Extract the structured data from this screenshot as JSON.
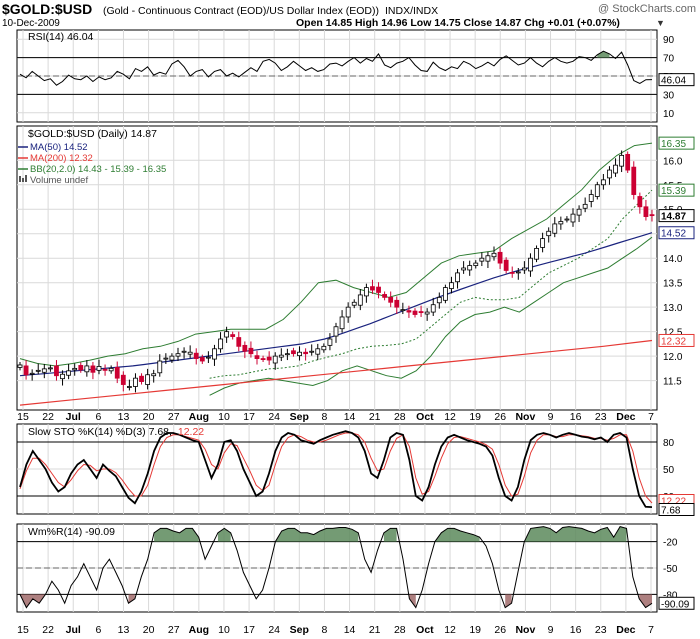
{
  "header": {
    "symbol": "$GOLD:$USD",
    "description": "(Gold - Continuous Contract (EOD)/US Dollar Index (EOD))",
    "exchange": "INDX/INDX",
    "date": "10-Dec-2009",
    "watermark": "@ StockCharts.com",
    "ohlc": "Open 14.85  High 14.96  Low 14.75  Close 14.87  Chg +0.01 (+0.07%)",
    "ohlc_marker": "▼"
  },
  "colors": {
    "up": "#ffffff",
    "down": "#cc0033",
    "ma50": "#1a237e",
    "ma200": "#e53935",
    "bb": "#2e7d32",
    "bb_mid": "#2e7d32",
    "grid": "#d9d9d9",
    "shade": "#5c8a5c",
    "shade_low": "#a06a6a",
    "stoch_d": "#e53935"
  },
  "chart_data": [
    {
      "type": "line",
      "panel": "rsi",
      "label": "RSI(14) 46.04",
      "last_value": "46.04",
      "yticks": [
        "90",
        "70",
        "50",
        "30",
        "10"
      ],
      "ylim": [
        0,
        100
      ],
      "levels": [
        70,
        30
      ],
      "values": [
        52,
        48,
        55,
        50,
        45,
        47,
        40,
        44,
        51,
        47,
        46,
        50,
        44,
        49,
        46,
        48,
        55,
        52,
        47,
        58,
        55,
        60,
        51,
        54,
        52,
        63,
        67,
        60,
        50,
        55,
        57,
        49,
        55,
        57,
        50,
        53,
        49,
        54,
        59,
        55,
        66,
        68,
        64,
        56,
        60,
        66,
        61,
        56,
        59,
        55,
        57,
        63,
        64,
        61,
        66,
        70,
        64,
        69,
        66,
        74,
        62,
        59,
        64,
        66,
        70,
        62,
        56,
        55,
        65,
        59,
        56,
        60,
        58,
        66,
        63,
        58,
        61,
        65,
        61,
        68,
        72,
        67,
        62,
        64,
        70,
        64,
        60,
        66,
        70,
        66,
        64,
        66,
        71,
        70,
        67,
        73,
        77,
        74,
        69,
        76,
        62,
        45,
        42,
        46,
        46.04
      ]
    },
    {
      "type": "candlestick",
      "panel": "price",
      "label": "$GOLD:$USD (Daily) 14.87",
      "ylim": [
        10.9,
        16.7
      ],
      "yticks": [
        "16.0",
        "15.5",
        "15.0",
        "14.5",
        "14.0",
        "13.5",
        "13.0",
        "12.5",
        "12.0",
        "11.5"
      ],
      "legend": [
        {
          "name": "MA(50) 14.52",
          "color": "#1a237e",
          "marker": "line"
        },
        {
          "name": "MA(200) 12.32",
          "color": "#e53935",
          "marker": "line"
        },
        {
          "name": "BB(20,2.0) 14.43 - 15.39 - 16.35",
          "color": "#2e7d32",
          "marker": "line"
        },
        {
          "name": "Volume undef",
          "color": "#555555",
          "marker": "bars"
        }
      ],
      "value_tags": [
        {
          "text": "16.35",
          "value": 16.35,
          "color": "#2e7d32"
        },
        {
          "text": "15.39",
          "value": 15.39,
          "color": "#2e7d32"
        },
        {
          "text": "14.87",
          "value": 14.87,
          "color": "#000000",
          "bold": true
        },
        {
          "text": "14.52",
          "value": 14.52,
          "color": "#1a237e"
        },
        {
          "text": "12.32",
          "value": 12.32,
          "color": "#e53935"
        }
      ],
      "close": [
        11.82,
        11.62,
        11.65,
        11.71,
        11.74,
        11.76,
        11.6,
        11.63,
        11.7,
        11.75,
        11.72,
        11.8,
        11.67,
        11.79,
        11.72,
        11.75,
        11.55,
        11.42,
        11.38,
        11.55,
        11.48,
        11.62,
        11.64,
        11.9,
        11.96,
        12.0,
        12.05,
        12.1,
        12.08,
        11.95,
        11.9,
        11.98,
        12.15,
        12.35,
        12.5,
        12.4,
        12.2,
        12.1,
        12.05,
        11.95,
        11.94,
        11.92,
        12.0,
        12.02,
        12.05,
        12.05,
        12.08,
        12.05,
        12.1,
        12.15,
        12.2,
        12.35,
        12.6,
        12.8,
        13.0,
        13.1,
        13.25,
        13.4,
        13.35,
        13.3,
        13.2,
        13.1,
        13.0,
        12.95,
        12.9,
        12.85,
        12.9,
        12.9,
        13.05,
        13.2,
        13.4,
        13.5,
        13.7,
        13.8,
        13.85,
        13.9,
        14.0,
        14.05,
        14.1,
        13.9,
        13.75,
        13.7,
        13.72,
        13.8,
        14.0,
        14.2,
        14.4,
        14.55,
        14.7,
        14.75,
        14.8,
        14.9,
        15.0,
        15.1,
        15.3,
        15.5,
        15.6,
        15.8,
        15.9,
        16.1,
        15.8,
        15.3,
        15.05,
        14.85,
        14.87
      ],
      "ma50": [
        11.6,
        11.62,
        11.64,
        11.66,
        11.68,
        11.7,
        11.72,
        11.74,
        11.76,
        11.78,
        11.8,
        11.83,
        11.86,
        11.89,
        11.92,
        11.95,
        11.98,
        12.01,
        12.04,
        12.07,
        12.1,
        12.13,
        12.16,
        12.19,
        12.22,
        12.25,
        12.3,
        12.35,
        12.42,
        12.5,
        12.58,
        12.66,
        12.75,
        12.84,
        12.93,
        13.02,
        13.11,
        13.2,
        13.28,
        13.36,
        13.44,
        13.52,
        13.6,
        13.67,
        13.74,
        13.8,
        13.86,
        13.92,
        13.98,
        14.04,
        14.1,
        14.17,
        14.24,
        14.31,
        14.38,
        14.45,
        14.52
      ],
      "ma200": [
        11.0,
        11.1,
        11.2,
        11.3,
        11.4,
        11.5,
        11.6,
        11.7,
        11.8,
        11.9,
        12.0,
        12.1,
        12.2,
        12.32
      ],
      "bb_upper": [
        11.95,
        11.85,
        11.8,
        11.85,
        11.92,
        12.0,
        12.05,
        12.15,
        12.2,
        12.3,
        12.45,
        12.5,
        12.55,
        12.55,
        12.55,
        12.75,
        13.1,
        13.5,
        13.55,
        13.4,
        13.3,
        13.2,
        13.3,
        13.6,
        13.9,
        14.05,
        14.1,
        14.15,
        14.4,
        14.6,
        14.8,
        15.1,
        15.4,
        15.8,
        16.1,
        16.3,
        16.35
      ],
      "bb_lower": [
        11.2,
        11.35,
        11.45,
        11.5,
        11.55,
        11.5,
        11.45,
        11.4,
        11.5,
        11.7,
        11.8,
        11.7,
        11.6,
        11.55,
        11.7,
        12.0,
        12.4,
        12.7,
        12.85,
        12.9,
        13.0,
        12.9,
        13.1,
        13.3,
        13.5,
        13.6,
        13.7,
        13.8,
        14.0,
        14.2,
        14.43
      ],
      "bb_mid": [
        11.55,
        11.6,
        11.62,
        11.68,
        11.74,
        11.76,
        11.8,
        11.9,
        11.98,
        12.05,
        12.15,
        12.2,
        12.22,
        12.25,
        12.35,
        12.6,
        12.85,
        13.1,
        13.2,
        13.15,
        13.15,
        13.2,
        13.45,
        13.7,
        13.85,
        14.0,
        14.2,
        14.4,
        14.8,
        15.1,
        15.39
      ]
    },
    {
      "type": "line",
      "panel": "stochastic",
      "label": "Slow STO %K(14) %D(3) 7.68, 12.22",
      "title_k": "Slow STO %K(14) %D(3) 7.68,",
      "title_d": "12.22",
      "last_k": "7.68",
      "last_d": "12.22",
      "ylim": [
        0,
        100
      ],
      "yticks": [
        "80",
        "50",
        "20"
      ],
      "levels": [
        80,
        20
      ],
      "series": [
        {
          "name": "%K",
          "values": [
            30,
            55,
            70,
            60,
            50,
            35,
            25,
            30,
            45,
            55,
            60,
            50,
            40,
            55,
            48,
            42,
            30,
            18,
            12,
            25,
            45,
            70,
            85,
            90,
            90,
            88,
            85,
            82,
            80,
            60,
            40,
            55,
            80,
            82,
            70,
            50,
            35,
            20,
            25,
            45,
            70,
            85,
            90,
            88,
            82,
            80,
            78,
            82,
            85,
            88,
            90,
            92,
            90,
            85,
            70,
            45,
            40,
            60,
            85,
            90,
            88,
            60,
            20,
            15,
            30,
            55,
            75,
            85,
            88,
            85,
            82,
            80,
            78,
            75,
            65,
            40,
            20,
            15,
            30,
            60,
            82,
            88,
            90,
            88,
            85,
            88,
            90,
            88,
            86,
            85,
            83,
            85,
            80,
            88,
            90,
            85,
            50,
            20,
            8,
            7.68
          ]
        },
        {
          "name": "%D",
          "values": [
            28,
            48,
            62,
            62,
            55,
            45,
            35,
            30,
            38,
            48,
            55,
            54,
            48,
            50,
            50,
            46,
            38,
            28,
            20,
            20,
            32,
            55,
            75,
            85,
            88,
            88,
            86,
            84,
            82,
            72,
            55,
            50,
            68,
            78,
            76,
            62,
            48,
            32,
            26,
            32,
            55,
            75,
            85,
            88,
            86,
            82,
            80,
            80,
            82,
            85,
            88,
            90,
            90,
            88,
            80,
            62,
            48,
            50,
            70,
            84,
            88,
            75,
            40,
            22,
            25,
            42,
            62,
            78,
            85,
            86,
            84,
            82,
            80,
            77,
            72,
            55,
            32,
            20,
            22,
            42,
            68,
            82,
            88,
            88,
            86,
            86,
            88,
            88,
            87,
            86,
            84,
            84,
            82,
            84,
            88,
            88,
            70,
            40,
            20,
            12.22
          ]
        }
      ]
    },
    {
      "type": "area",
      "panel": "williams",
      "label": "Wm%R(14) -90.09",
      "last_value": "-90.09",
      "ylim": [
        -100,
        0
      ],
      "yticks": [
        "-20",
        "-50",
        "-80"
      ],
      "levels": [
        -20,
        -80
      ],
      "values": [
        -80,
        -95,
        -85,
        -90,
        -80,
        -65,
        -75,
        -90,
        -70,
        -60,
        -45,
        -60,
        -75,
        -50,
        -40,
        -55,
        -70,
        -90,
        -85,
        -60,
        -40,
        -10,
        -5,
        -5,
        -8,
        -10,
        -5,
        -5,
        -15,
        -40,
        -25,
        -10,
        -5,
        -10,
        -30,
        -55,
        -70,
        -85,
        -75,
        -50,
        -20,
        -8,
        -5,
        -5,
        -10,
        -10,
        -12,
        -8,
        -5,
        -5,
        -4,
        -4,
        -6,
        -10,
        -40,
        -55,
        -30,
        -10,
        -5,
        -5,
        -40,
        -85,
        -95,
        -75,
        -45,
        -20,
        -10,
        -5,
        -5,
        -8,
        -10,
        -12,
        -15,
        -25,
        -45,
        -75,
        -95,
        -90,
        -55,
        -20,
        -5,
        -4,
        -3,
        -5,
        -10,
        -4,
        -3,
        -4,
        -5,
        -8,
        -10,
        -6,
        -4,
        -15,
        -3,
        -5,
        -60,
        -85,
        -95,
        -90.09
      ]
    }
  ],
  "xaxis": {
    "labels": [
      {
        "text": "15",
        "bold": false
      },
      {
        "text": "22",
        "bold": false
      },
      {
        "text": "Jul",
        "bold": true
      },
      {
        "text": "6",
        "bold": false
      },
      {
        "text": "13",
        "bold": false
      },
      {
        "text": "20",
        "bold": false
      },
      {
        "text": "27",
        "bold": false
      },
      {
        "text": "Aug",
        "bold": true
      },
      {
        "text": "10",
        "bold": false
      },
      {
        "text": "17",
        "bold": false
      },
      {
        "text": "24",
        "bold": false
      },
      {
        "text": "Sep",
        "bold": true
      },
      {
        "text": "8",
        "bold": false
      },
      {
        "text": "14",
        "bold": false
      },
      {
        "text": "21",
        "bold": false
      },
      {
        "text": "28",
        "bold": false
      },
      {
        "text": "Oct",
        "bold": true
      },
      {
        "text": "12",
        "bold": false
      },
      {
        "text": "19",
        "bold": false
      },
      {
        "text": "26",
        "bold": false
      },
      {
        "text": "Nov",
        "bold": true
      },
      {
        "text": "9",
        "bold": false
      },
      {
        "text": "16",
        "bold": false
      },
      {
        "text": "23",
        "bold": false
      },
      {
        "text": "Dec",
        "bold": true
      },
      {
        "text": "7",
        "bold": false
      }
    ]
  }
}
